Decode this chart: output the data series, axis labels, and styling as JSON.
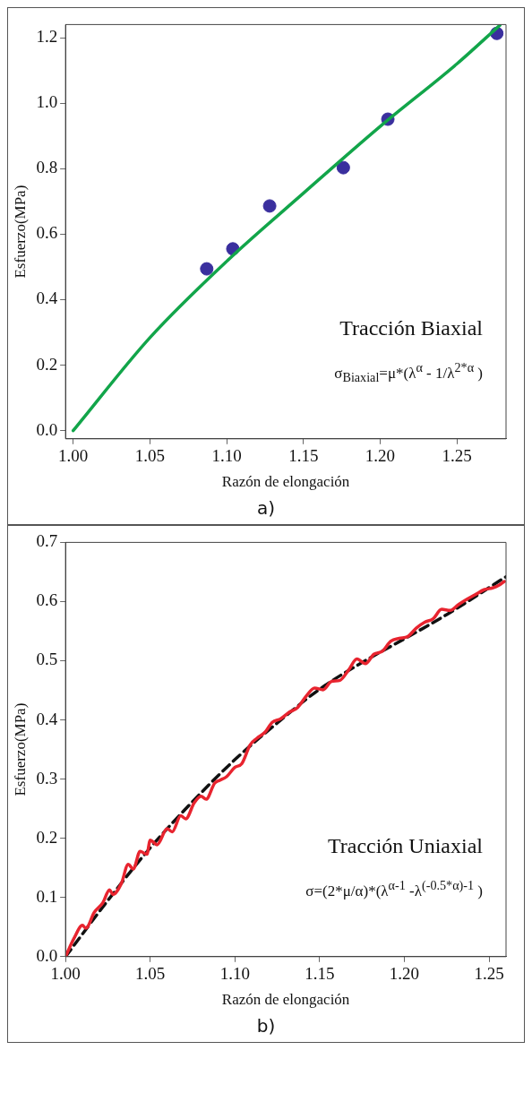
{
  "chart_data": [
    {
      "type": "scatter",
      "xlabel": "Razón de elongación",
      "ylabel": "Esfuerzo(MPa)",
      "xlim": [
        0.995,
        1.282
      ],
      "ylim": [
        -0.025,
        1.24
      ],
      "xticks": [
        {
          "value": 1.0,
          "label": "1.00"
        },
        {
          "value": 1.05,
          "label": "1.05"
        },
        {
          "value": 1.1,
          "label": "1.10"
        },
        {
          "value": 1.15,
          "label": "1.15"
        },
        {
          "value": 1.2,
          "label": "1.20"
        },
        {
          "value": 1.25,
          "label": "1.25"
        }
      ],
      "yticks": [
        {
          "value": 0,
          "label": "0.0"
        },
        {
          "value": 0.2,
          "label": "0.2"
        },
        {
          "value": 0.4,
          "label": "0.4"
        },
        {
          "value": 0.6,
          "label": "0.6"
        },
        {
          "value": 0.8,
          "label": "0.8"
        },
        {
          "value": 1.0,
          "label": "1.0"
        },
        {
          "value": 1.2,
          "label": "1.2"
        }
      ],
      "grid": false,
      "legend": false,
      "series": [
        {
          "type": "line",
          "color": "#12a54a",
          "line_style": "solid",
          "x": [
            1.0,
            1.05,
            1.1,
            1.15,
            1.2,
            1.25,
            1.278
          ],
          "values": [
            0,
            0.284,
            0.517,
            0.725,
            0.929,
            1.12,
            1.238
          ]
        },
        {
          "color": "#3a2f9e",
          "marker": "circle",
          "x": [
            1.087,
            1.104,
            1.128,
            1.176,
            1.205,
            1.276
          ],
          "values": [
            0.494,
            0.555,
            0.686,
            0.803,
            0.951,
            1.213
          ]
        }
      ],
      "annotations": [
        "Tracción Biaxial",
        "σ$_{Biaxial}$=μ*(λ$^{α}$ - 1/λ$^{2*α}$ )",
        "a)"
      ]
    },
    {
      "type": "line",
      "xlabel": "Razón de elongación",
      "ylabel": "Esfuerzo(MPa)",
      "xlim": [
        1.0,
        1.26
      ],
      "ylim": [
        0,
        0.7
      ],
      "xticks": [
        {
          "value": 1.0,
          "label": "1.00"
        },
        {
          "value": 1.05,
          "label": "1.05"
        },
        {
          "value": 1.1,
          "label": "1.10"
        },
        {
          "value": 1.15,
          "label": "1.15"
        },
        {
          "value": 1.2,
          "label": "1.20"
        },
        {
          "value": 1.25,
          "label": "1.25"
        }
      ],
      "yticks": [
        {
          "value": 0,
          "label": "0.0"
        },
        0.1,
        0.2,
        0.3,
        0.4,
        0.5,
        0.6,
        0.7
      ],
      "grid": false,
      "legend": false,
      "series": [
        {
          "color": "#e8242f",
          "line_style": "solid",
          "x": [
            1.0,
            1.005,
            1.01,
            1.012,
            1.017,
            1.022,
            1.026,
            1.028,
            1.033,
            1.037,
            1.04,
            1.044,
            1.048,
            1.05,
            1.054,
            1.06,
            1.063,
            1.068,
            1.071,
            1.076,
            1.08,
            1.083,
            1.088,
            1.091,
            1.095,
            1.1,
            1.104,
            1.109,
            1.113,
            1.118,
            1.122,
            1.127,
            1.132,
            1.137,
            1.142,
            1.147,
            1.152,
            1.157,
            1.162,
            1.167,
            1.172,
            1.177,
            1.182,
            1.187,
            1.192,
            1.197,
            1.202,
            1.207,
            1.212,
            1.217,
            1.222,
            1.227,
            1.232,
            1.237,
            1.242,
            1.247,
            1.252,
            1.256,
            1.259
          ],
          "values": [
            0,
            0.031,
            0.053,
            0.048,
            0.075,
            0.091,
            0.113,
            0.105,
            0.124,
            0.156,
            0.148,
            0.178,
            0.173,
            0.197,
            0.189,
            0.216,
            0.211,
            0.238,
            0.233,
            0.26,
            0.271,
            0.266,
            0.293,
            0.298,
            0.304,
            0.32,
            0.326,
            0.358,
            0.369,
            0.38,
            0.396,
            0.402,
            0.413,
            0.421,
            0.44,
            0.454,
            0.451,
            0.465,
            0.467,
            0.484,
            0.503,
            0.495,
            0.511,
            0.516,
            0.533,
            0.538,
            0.541,
            0.555,
            0.565,
            0.571,
            0.587,
            0.585,
            0.595,
            0.604,
            0.612,
            0.62,
            0.623,
            0.628,
            0.634
          ]
        },
        {
          "color": "#111111",
          "line_style": "dashed",
          "x": [
            1.0,
            1.025,
            1.05,
            1.075,
            1.1,
            1.125,
            1.15,
            1.175,
            1.2,
            1.225,
            1.26
          ],
          "values": [
            0,
            0.095,
            0.184,
            0.262,
            0.333,
            0.395,
            0.452,
            0.497,
            0.537,
            0.578,
            0.642
          ]
        }
      ],
      "annotations": [
        "Tracción Uniaxial",
        "σ=(2*μ/α)*(λ$^{α-1}$ -λ$^{(-0.5*α)-1}$ )",
        "b)"
      ]
    }
  ]
}
